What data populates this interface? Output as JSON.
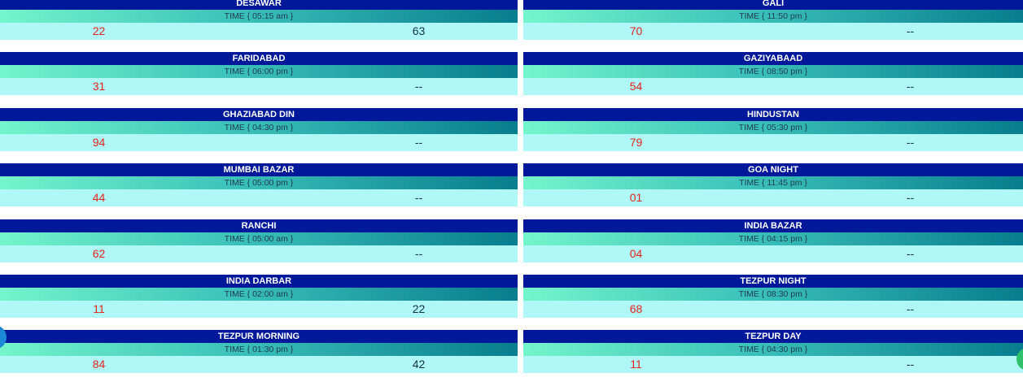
{
  "rows": [
    [
      {
        "name": "DESAWAR",
        "time": "TIME { 05:15 am }",
        "left": "22",
        "right": "63"
      },
      {
        "name": "GALI",
        "time": "TIME { 11:50 pm }",
        "left": "70",
        "right": "--"
      }
    ],
    [
      {
        "name": "FARIDABAD",
        "time": "TIME { 06:00 pm }",
        "left": "31",
        "right": "--"
      },
      {
        "name": "GAZIYABAAD",
        "time": "TIME { 08:50 pm }",
        "left": "54",
        "right": "--"
      }
    ],
    [
      {
        "name": "GHAZIABAD DIN",
        "time": "TIME { 04:30 pm }",
        "left": "94",
        "right": "--"
      },
      {
        "name": "HINDUSTAN",
        "time": "TIME { 05:30 pm }",
        "left": "79",
        "right": "--"
      }
    ],
    [
      {
        "name": "MUMBAI BAZAR",
        "time": "TIME { 05:00 pm }",
        "left": "44",
        "right": "--"
      },
      {
        "name": "GOA NIGHT",
        "time": "TIME { 11:45 pm }",
        "left": "01",
        "right": "--"
      }
    ],
    [
      {
        "name": "RANCHI",
        "time": "TIME { 05:00 am }",
        "left": "62",
        "right": "--"
      },
      {
        "name": "INDIA BAZAR",
        "time": "TIME { 04:15 pm }",
        "left": "04",
        "right": "--"
      }
    ],
    [
      {
        "name": "INDIA DARBAR",
        "time": "TIME { 02:00 am }",
        "left": "11",
        "right": "22"
      },
      {
        "name": "TEZPUR NIGHT",
        "time": "TIME { 08:30 pm }",
        "left": "68",
        "right": "--"
      }
    ],
    [
      {
        "name": "TEZPUR MORNING",
        "time": "TIME { 01:30 pm }",
        "left": "84",
        "right": "42"
      },
      {
        "name": "TEZPUR DAY",
        "time": "TIME { 04:30 pm }",
        "left": "11",
        "right": "--"
      }
    ]
  ],
  "colors": {
    "title_bg": "#00189a",
    "results_bg": "#b0f8f8",
    "left_result": "#e0261c",
    "right_result": "#10304a"
  },
  "floating_buttons": {
    "left_icon": "chat-bubble-icon",
    "right_icon": "whatsapp-icon"
  }
}
